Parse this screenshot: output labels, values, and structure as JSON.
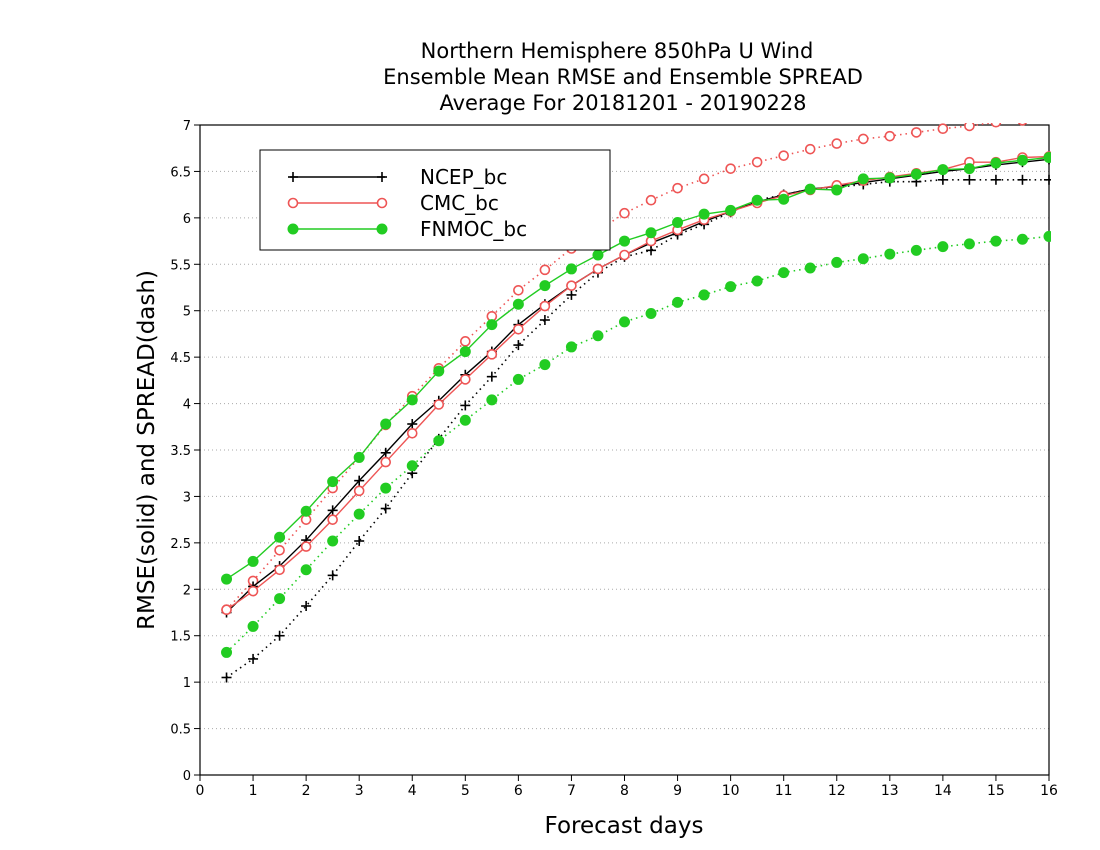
{
  "chart_data": {
    "type": "line",
    "title": [
      "Northern Hemisphere 850hPa U Wind",
      "Ensemble Mean RMSE and Ensemble SPREAD",
      "Average For 20181201 - 20190228"
    ],
    "xlabel": "Forecast days",
    "ylabel": "RMSE(solid) and SPREAD(dash)",
    "xlim": [
      0,
      16
    ],
    "ylim": [
      0,
      7
    ],
    "x_ticks": [
      0,
      1,
      2,
      3,
      4,
      5,
      6,
      7,
      8,
      9,
      10,
      11,
      12,
      13,
      14,
      15,
      16
    ],
    "y_ticks": [
      0,
      0.5,
      1,
      1.5,
      2,
      2.5,
      3,
      3.5,
      4,
      4.5,
      5,
      5.5,
      6,
      6.5,
      7
    ],
    "grid": "horizontal dotted",
    "legend_position": "top-left",
    "x": [
      0.5,
      1,
      1.5,
      2,
      2.5,
      3,
      3.5,
      4,
      4.5,
      5,
      5.5,
      6,
      6.5,
      7,
      7.5,
      8,
      8.5,
      9,
      9.5,
      10,
      10.5,
      11,
      11.5,
      12,
      12.5,
      13,
      13.5,
      14,
      14.5,
      15,
      15.5,
      16
    ],
    "series": [
      {
        "name": "NCEP_bc",
        "color": "#000000",
        "marker": "plus",
        "style": "solid",
        "values": [
          1.75,
          2.03,
          2.25,
          2.53,
          2.85,
          3.17,
          3.47,
          3.78,
          4.03,
          4.31,
          4.56,
          4.85,
          5.07,
          5.27,
          5.45,
          5.6,
          5.73,
          5.84,
          5.96,
          6.07,
          6.17,
          6.25,
          6.31,
          6.34,
          6.38,
          6.42,
          6.46,
          6.5,
          6.53,
          6.57,
          6.6,
          6.63
        ]
      },
      {
        "name": "NCEP_bc",
        "color": "#000000",
        "marker": "plus",
        "style": "dotted",
        "values": [
          1.05,
          1.25,
          1.5,
          1.82,
          2.15,
          2.52,
          2.87,
          3.25,
          3.62,
          3.98,
          4.29,
          4.63,
          4.9,
          5.17,
          5.41,
          5.58,
          5.65,
          5.82,
          5.93,
          6.06,
          6.19,
          6.25,
          6.31,
          6.33,
          6.36,
          6.39,
          6.39,
          6.41,
          6.41,
          6.41,
          6.41,
          6.41
        ]
      },
      {
        "name": "CMC_bc",
        "color": "#ee5555",
        "marker": "open-circle",
        "style": "solid",
        "values": [
          1.78,
          1.98,
          2.21,
          2.46,
          2.75,
          3.06,
          3.37,
          3.68,
          3.99,
          4.26,
          4.53,
          4.8,
          5.05,
          5.27,
          5.45,
          5.6,
          5.75,
          5.87,
          5.98,
          6.07,
          6.16,
          6.24,
          6.3,
          6.35,
          6.4,
          6.44,
          6.48,
          6.52,
          6.6,
          6.6,
          6.65,
          6.66
        ]
      },
      {
        "name": "CMC_bc",
        "color": "#ee5555",
        "marker": "open-circle",
        "style": "dotted",
        "values": [
          1.78,
          2.09,
          2.42,
          2.75,
          3.09,
          3.42,
          3.77,
          4.08,
          4.38,
          4.67,
          4.94,
          5.22,
          5.44,
          5.67,
          5.86,
          6.05,
          6.19,
          6.32,
          6.42,
          6.53,
          6.6,
          6.67,
          6.74,
          6.8,
          6.85,
          6.88,
          6.92,
          6.96,
          6.99,
          7.03,
          7.05,
          7.08
        ]
      },
      {
        "name": "FNMOC_bc",
        "color": "#22cc22",
        "marker": "filled-circle",
        "style": "solid",
        "values": [
          2.11,
          2.3,
          2.56,
          2.84,
          3.16,
          3.42,
          3.78,
          4.04,
          4.35,
          4.56,
          4.85,
          5.07,
          5.27,
          5.45,
          5.6,
          5.75,
          5.84,
          5.95,
          6.04,
          6.08,
          6.19,
          6.2,
          6.31,
          6.3,
          6.42,
          6.43,
          6.47,
          6.52,
          6.53,
          6.59,
          6.62,
          6.65
        ]
      },
      {
        "name": "FNMOC_bc",
        "color": "#22cc22",
        "marker": "filled-circle",
        "style": "dotted",
        "values": [
          1.32,
          1.6,
          1.9,
          2.21,
          2.52,
          2.81,
          3.09,
          3.33,
          3.6,
          3.82,
          4.04,
          4.26,
          4.42,
          4.61,
          4.73,
          4.88,
          4.97,
          5.09,
          5.17,
          5.26,
          5.32,
          5.41,
          5.46,
          5.52,
          5.56,
          5.61,
          5.65,
          5.69,
          5.72,
          5.75,
          5.77,
          5.8
        ]
      }
    ],
    "legend": [
      {
        "label": "NCEP_bc",
        "color": "#000000",
        "marker": "plus"
      },
      {
        "label": "CMC_bc",
        "color": "#ee5555",
        "marker": "open-circle"
      },
      {
        "label": "FNMOC_bc",
        "color": "#22cc22",
        "marker": "filled-circle"
      }
    ]
  }
}
